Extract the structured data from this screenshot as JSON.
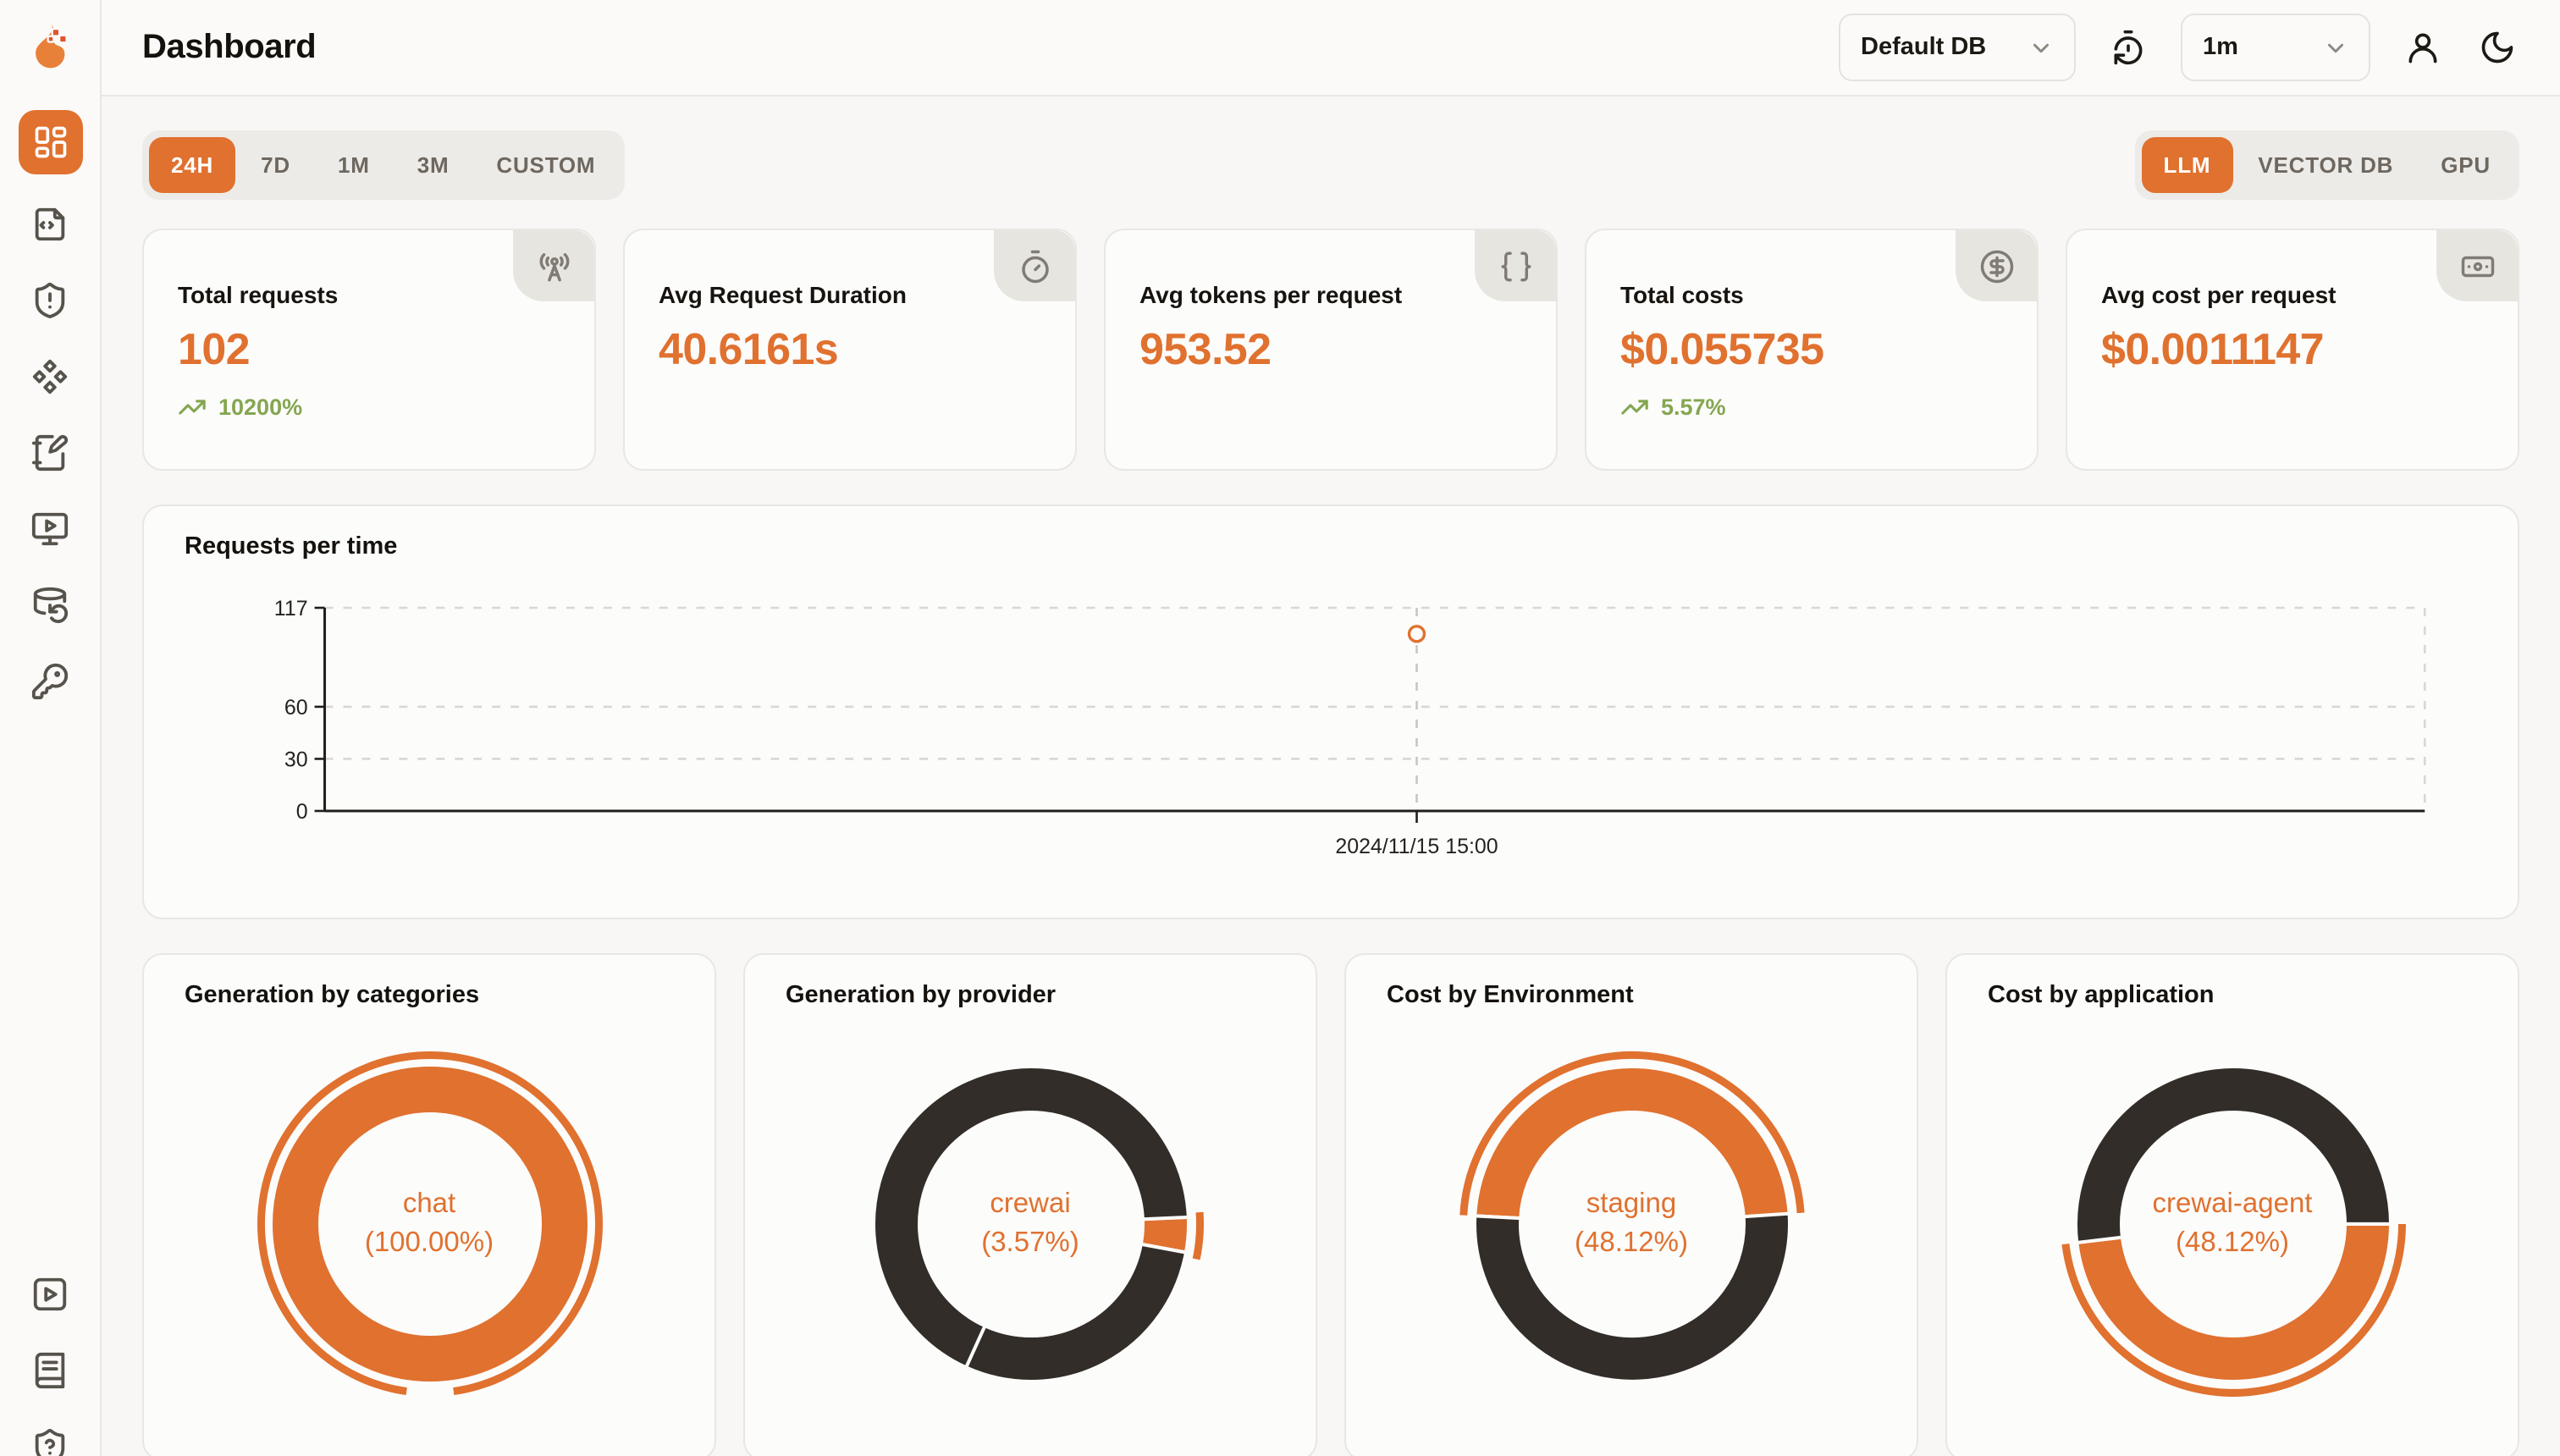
{
  "header": {
    "title": "Dashboard",
    "db_select": {
      "value": "Default DB",
      "icon": "chevron-down"
    },
    "interval_select": {
      "value": "1m",
      "icon": "chevron-down"
    },
    "icons": [
      "timer-reset",
      "user-round",
      "moon"
    ]
  },
  "sidebar": {
    "logo_icon": "flame-pixel-logo",
    "items": [
      {
        "icon": "layout-dashboard",
        "active": true
      },
      {
        "icon": "file-code",
        "active": false
      },
      {
        "icon": "shield-alert",
        "active": false
      },
      {
        "icon": "component-diamonds",
        "active": false
      },
      {
        "icon": "notebook-pen",
        "active": false
      },
      {
        "icon": "monitor-play",
        "active": false
      },
      {
        "icon": "database-backup",
        "active": false
      },
      {
        "icon": "key-round",
        "active": false
      }
    ],
    "bottom_items": [
      {
        "icon": "square-play"
      },
      {
        "icon": "book-text"
      },
      {
        "icon": "shield-question"
      }
    ]
  },
  "filters": {
    "time_tabs": [
      "24H",
      "7D",
      "1M",
      "3M",
      "CUSTOM"
    ],
    "active_time_tab": "24H",
    "scope_tabs": [
      "LLM",
      "VECTOR DB",
      "GPU"
    ],
    "active_scope_tab": "LLM"
  },
  "stats": [
    {
      "label": "Total requests",
      "value": "102",
      "trend": "10200%",
      "icon": "radio-tower"
    },
    {
      "label": "Avg Request Duration",
      "value": "40.6161s",
      "icon": "timer"
    },
    {
      "label": "Avg tokens per request",
      "value": "953.52",
      "icon": "braces"
    },
    {
      "label": "Total costs",
      "value": "$0.055735",
      "trend": "5.57%",
      "icon": "circle-dollar-sign"
    },
    {
      "label": "Avg cost per request",
      "value": "$0.0011147",
      "icon": "banknote"
    }
  ],
  "colors": {
    "accent": "#e0712f",
    "dark": "#322d29",
    "green": "#85a650"
  },
  "chart_data": [
    {
      "type": "line",
      "title": "Requests per time",
      "xlabel": "",
      "ylabel": "",
      "ylim": [
        0,
        117
      ],
      "yticks": [
        0,
        30,
        60,
        117
      ],
      "grid": "dashed horizontal gridlines, dashed right border",
      "legend": "none",
      "points": [
        {
          "x_label": "2024/11/15 15:00",
          "value": 102,
          "x_fraction": 0.52,
          "marker": "open-circle"
        }
      ]
    },
    {
      "type": "pie",
      "title": "Generation by categories",
      "center_label": [
        "chat",
        "(100.00%)"
      ],
      "highlight": {
        "label": "chat",
        "pct": 100.0
      },
      "segments": [
        {
          "label": "chat",
          "pct": 100.0,
          "color": "accent",
          "start_deg": 270
        }
      ],
      "emphasis": {
        "start_deg": 188,
        "sweep_deg": 344
      }
    },
    {
      "type": "pie",
      "title": "Generation by provider",
      "center_label": [
        "crewai",
        "(3.57%)"
      ],
      "highlight": {
        "label": "crewai",
        "pct": 3.57
      },
      "segments": [
        {
          "label": "crewai",
          "pct": 3.57,
          "color": "accent",
          "start_deg": 87.5
        },
        {
          "label": null,
          "pct": 28.9,
          "color": "dark",
          "start_deg": 100.4
        },
        {
          "label": null,
          "pct": 67.53,
          "color": "dark",
          "start_deg": 204.4
        }
      ],
      "emphasis": {
        "start_deg": 86,
        "sweep_deg": 16
      }
    },
    {
      "type": "pie",
      "title": "Cost by Environment",
      "center_label": [
        "staging",
        "(48.12%)"
      ],
      "highlight": {
        "label": "staging",
        "pct": 48.12
      },
      "segments": [
        {
          "label": "staging",
          "pct": 48.12,
          "color": "accent",
          "start_deg": 273
        },
        {
          "label": null,
          "pct": 51.88,
          "color": "dark",
          "start_deg": 86.2
        }
      ],
      "emphasis": {
        "start_deg": 273,
        "sweep_deg": 173.2
      }
    },
    {
      "type": "pie",
      "title": "Cost by application",
      "center_label": [
        "crewai-agent",
        "(48.12%)"
      ],
      "highlight": {
        "label": "crewai-agent",
        "pct": 48.12
      },
      "segments": [
        {
          "label": "crewai-agent",
          "pct": 48.12,
          "color": "accent",
          "start_deg": 90
        },
        {
          "label": null,
          "pct": 51.88,
          "color": "dark",
          "start_deg": 263.2
        }
      ],
      "emphasis": {
        "start_deg": 90,
        "sweep_deg": 173.2
      }
    }
  ]
}
